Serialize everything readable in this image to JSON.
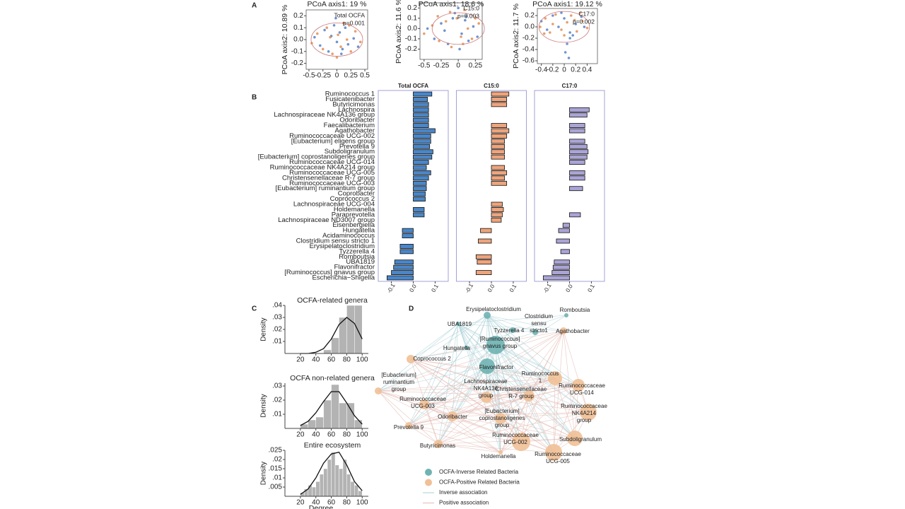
{
  "panel_labels": [
    "A",
    "B",
    "C",
    "D"
  ],
  "chart_data": [
    {
      "type": "scatter",
      "title": "PCoA axis1:  19 %",
      "y_label": "PCoA axis2:  10.89 %",
      "annotation": [
        "Total OCFA",
        "p=0.001"
      ],
      "xlim": [
        -0.55,
        0.55
      ],
      "ylim": [
        -0.25,
        0.25
      ],
      "xticks": [
        -0.5,
        -0.25,
        0,
        0.25,
        0.5
      ],
      "yticks": [
        0.2,
        0.1,
        {
          "value": 0,
          "label": "0.0"
        },
        -0.1,
        -0.2
      ],
      "series": [
        {
          "color": "#4a78c4",
          "x": [
            -0.4,
            -0.3,
            -0.22,
            -0.15,
            -0.1,
            -0.05,
            0,
            0.05,
            0.1,
            0.15,
            0.2,
            0.3,
            0.38,
            -0.02,
            0.08
          ],
          "y": [
            0.02,
            -0.05,
            0.08,
            -0.1,
            0.03,
            0.12,
            -0.02,
            0.06,
            -0.08,
            0.1,
            -0.04,
            0.01,
            -0.06,
            0.18,
            -0.12
          ]
        },
        {
          "color": "#e0874a",
          "x": [
            -0.45,
            -0.35,
            -0.25,
            -0.18,
            -0.08,
            0.02,
            0.07,
            0.12,
            0.18,
            0.25,
            0.33,
            0.42,
            -0.12,
            0,
            0.22
          ],
          "y": [
            -0.03,
            0.05,
            -0.08,
            0.1,
            -0.12,
            0.04,
            -0.06,
            0.14,
            0,
            -0.1,
            0.07,
            -0.02,
            0.02,
            -0.15,
            0.12
          ]
        }
      ]
    },
    {
      "type": "scatter",
      "title": "PCoA axis1:  18.6 %",
      "y_label": "PCoA axis2:  11.6 %",
      "annotation": [
        "C15:0",
        "p=0.003"
      ],
      "xlim": [
        -0.56,
        0.35
      ],
      "ylim": [
        -0.3,
        0.25
      ],
      "xticks": [
        -0.5,
        -0.25,
        0,
        0.25
      ],
      "yticks": [
        0.2,
        0.1,
        {
          "value": 0,
          "label": "0.0"
        },
        -0.1,
        -0.2
      ],
      "series": [
        {
          "color": "#4a78c4",
          "x": [
            -0.45,
            -0.35,
            -0.25,
            -0.15,
            -0.08,
            0,
            0.05,
            0.1,
            0.15,
            0.22,
            -0.05,
            0.02,
            -0.2,
            0.12,
            0.28
          ],
          "y": [
            0,
            -0.1,
            0.05,
            -0.15,
            0.1,
            0.2,
            -0.05,
            0.08,
            -0.12,
            0.02,
            0.15,
            -0.2,
            -0.02,
            0.12,
            -0.08
          ]
        },
        {
          "color": "#e0874a",
          "x": [
            -0.5,
            -0.38,
            -0.28,
            -0.18,
            -0.1,
            -0.02,
            0.04,
            0.09,
            0.14,
            0.2,
            0.3,
            -0.12,
            0.07,
            -0.3,
            0.25
          ],
          "y": [
            -0.05,
            0.03,
            -0.12,
            0.07,
            -0.18,
            0.1,
            -0.08,
            0.18,
            0,
            -0.1,
            0.05,
            0.16,
            -0.15,
            0.12,
            0.1
          ]
        }
      ]
    },
    {
      "type": "scatter",
      "title": "PCoA axis1:  19.12 %",
      "y_label": "PCoA axis2:  11.7 %",
      "annotation": [
        "C17:0",
        "p=0.002"
      ],
      "xlim": [
        -0.47,
        0.58
      ],
      "ylim": [
        -0.65,
        0.325
      ],
      "xticks": [
        -0.4,
        -0.2,
        0,
        0.2,
        0.4
      ],
      "yticks": [
        0.2,
        {
          "value": 0,
          "label": "0.0"
        },
        -0.2,
        -0.4,
        -0.6
      ],
      "series": [
        {
          "color": "#4a78c4",
          "x": [
            -0.4,
            -0.3,
            -0.2,
            -0.1,
            0,
            0.1,
            0.2,
            0.3,
            0.05,
            0.02,
            0.08,
            0.1,
            -0.05,
            0.15,
            0.35
          ],
          "y": [
            0.1,
            -0.05,
            0.2,
            0,
            0.15,
            -0.1,
            0.05,
            0.18,
            -0.3,
            -0.45,
            -0.55,
            -0.2,
            0.25,
            -0.15,
            0
          ]
        },
        {
          "color": "#e0874a",
          "x": [
            -0.42,
            -0.33,
            -0.25,
            -0.15,
            -0.05,
            0.05,
            0.12,
            0.22,
            0.32,
            0.4,
            -0.2,
            0,
            0.18,
            -0.35,
            0.28
          ],
          "y": [
            0,
            0.15,
            -0.1,
            0.22,
            -0.05,
            0.08,
            0.2,
            -0.08,
            0.1,
            -0.02,
            0.05,
            -0.15,
            0.12,
            -0.12,
            0.25
          ]
        }
      ]
    },
    {
      "type": "bar",
      "orientation": "horizontal",
      "categories": [
        "Ruminococcus 1",
        "Fusicatenibacter",
        "Butyricimonas",
        "Lachnospira",
        "Lachnospiraceae NK4A136 group",
        "Odoribacter",
        "Faecalibacterium",
        "Agathobacter",
        "Ruminococcaceae UCG-002",
        "[Eubacterium] eligens group",
        "Prevotella 9",
        "Subdoligranulum",
        "[Eubacterium] coprostanoligenes group",
        "Ruminococcaceae UCG-014",
        "Ruminococcaceae NK4A214 group",
        "Ruminococcaceae UCG-005",
        "Christensenellaceae R-7 group",
        "Ruminococcaceae UCG-003",
        "[Eubacterium] ruminantium group",
        "Coprobacter",
        "Coprococcus 2",
        "Lachnospiraceae UCG-004",
        "Holdemanella",
        "Paraprevotella",
        "Lachnospiraceae ND3007 group",
        "Eisenbergiella",
        "Hungatella",
        "Acidaminococcus",
        "Clostridium sensu stricto 1",
        "Erysipelatoclostridium",
        "Tyzzerella 4",
        "Romboutsia",
        "UBA1819",
        "Flavonifractor",
        "[Ruminococcus] gnavus group",
        "Escherichia−Shigella"
      ],
      "xlim": [
        -0.16,
        0.16
      ],
      "xticks": [
        -0.1,
        {
          "value": 0,
          "label": "0.0"
        },
        0.1
      ],
      "series": [
        {
          "name": "Total OCFA",
          "color": "#4a86c8",
          "values": [
            0.085,
            0.065,
            0.07,
            0.07,
            0.07,
            0.07,
            0.07,
            0.1,
            0.08,
            0.08,
            0.075,
            0.09,
            0.085,
            0.07,
            0.06,
            0.08,
            0.07,
            0.06,
            0.06,
            0.055,
            0.055,
            null,
            0.05,
            0.05,
            null,
            null,
            -0.05,
            -0.05,
            null,
            -0.06,
            -0.06,
            null,
            -0.085,
            -0.09,
            -0.1,
            -0.12
          ]
        },
        {
          "name": "C15:0",
          "color": "#eea47c",
          "values": [
            0.08,
            0.07,
            0.07,
            null,
            null,
            null,
            0.07,
            0.08,
            0.07,
            0.06,
            0.06,
            0.06,
            0.06,
            null,
            0.06,
            0.07,
            0.06,
            0.07,
            null,
            null,
            null,
            0.05,
            0.055,
            0.05,
            0.045,
            null,
            -0.05,
            null,
            -0.06,
            null,
            null,
            -0.07,
            -0.065,
            null,
            -0.07,
            null
          ]
        },
        {
          "name": "C17:0",
          "color": "#aaa4d6",
          "values": [
            null,
            null,
            null,
            0.09,
            0.08,
            null,
            0.07,
            0.07,
            null,
            0.07,
            0.08,
            0.085,
            0.08,
            0.07,
            null,
            0.07,
            0.07,
            null,
            0.06,
            null,
            null,
            null,
            null,
            0.05,
            null,
            -0.03,
            -0.05,
            null,
            -0.06,
            null,
            -0.04,
            null,
            -0.07,
            -0.075,
            -0.08,
            -0.12
          ]
        }
      ]
    },
    {
      "type": "histogram",
      "title": "OCFA-related genera",
      "y_label": "Density",
      "color": "#b3b3b3",
      "bins": [
        50,
        60,
        70,
        80,
        90,
        100
      ],
      "values": [
        0.003,
        0.013,
        0.03,
        0.04,
        0.04
      ],
      "curve": {
        "x": [
          20,
          30,
          40,
          50,
          60,
          70,
          80,
          90,
          100
        ],
        "y": [
          0,
          0,
          0.001,
          0.004,
          0.012,
          0.024,
          0.03,
          0.025,
          0.012
        ]
      },
      "xlim": [
        0,
        108
      ],
      "ylim": [
        0,
        0.04
      ],
      "xticks": [
        20,
        40,
        60,
        80,
        100
      ],
      "yticks": [
        {
          "value": 0.04,
          "label": ".04"
        },
        {
          "value": 0.03,
          "label": ".03"
        },
        {
          "value": 0.02,
          "label": ".02"
        },
        {
          "value": 0.01,
          "label": ".01"
        }
      ]
    },
    {
      "type": "histogram",
      "title": "OCFA non-related genera",
      "y_label": "Density",
      "color": "#b3b3b3",
      "bins": [
        20,
        30,
        40,
        50,
        60,
        70,
        80,
        90,
        100
      ],
      "values": [
        0.003,
        0.006,
        0.008,
        0.02,
        0.031,
        0.018,
        0.018,
        0.006
      ],
      "curve": {
        "x": [
          20,
          30,
          40,
          50,
          60,
          70,
          80,
          90,
          100
        ],
        "y": [
          0.002,
          0.005,
          0.011,
          0.019,
          0.026,
          0.026,
          0.018,
          0.009,
          0.003
        ]
      },
      "xlim": [
        0,
        108
      ],
      "ylim": [
        0,
        0.032
      ],
      "xticks": [
        20,
        40,
        60,
        80,
        100
      ],
      "yticks": [
        {
          "value": 0.03,
          "label": ".03"
        },
        {
          "value": 0.02,
          "label": ".02"
        },
        {
          "value": 0.01,
          "label": ".01"
        }
      ]
    },
    {
      "type": "histogram",
      "title": "Entire ecosystem",
      "y_label": "Density",
      "x_label": "Degree",
      "color": "#b3b3b3",
      "bins": [
        20,
        25,
        30,
        35,
        40,
        45,
        50,
        55,
        60,
        65,
        70,
        75,
        80,
        85,
        90,
        95,
        100
      ],
      "values": [
        0.002,
        0.004,
        0.006,
        0.005,
        0.008,
        0.012,
        0.015,
        0.02,
        0.024,
        0.017,
        0.015,
        0.02,
        0.012,
        0.008,
        0.006,
        0.003
      ],
      "curve": {
        "x": [
          20,
          30,
          40,
          50,
          60,
          70,
          80,
          90,
          100
        ],
        "y": [
          0.001,
          0.004,
          0.01,
          0.018,
          0.023,
          0.024,
          0.017,
          0.008,
          0.003
        ]
      },
      "xlim": [
        0,
        108
      ],
      "ylim": [
        0,
        0.025
      ],
      "xticks": [
        20,
        40,
        60,
        80,
        100
      ],
      "yticks": [
        {
          "value": 0.025,
          "label": ".025"
        },
        {
          "value": 0.02,
          "label": ".02"
        },
        {
          "value": 0.015,
          "label": ".015"
        },
        {
          "value": 0.01,
          "label": ".01"
        },
        {
          "value": 0.005,
          "label": ".005"
        }
      ]
    }
  ],
  "network": {
    "nodes": [
      {
        "label": [
          "Erysipelatoclostridium"
        ],
        "color": "#6fb3b3"
      },
      {
        "label": [
          "Romboutsia"
        ],
        "color": "#6fb3b3"
      },
      {
        "label": [
          "Clostridium",
          "sensu",
          "stricto1"
        ],
        "color": "#6fb3b3"
      },
      {
        "label": [
          "UBA1819"
        ],
        "color": "#6fb3b3"
      },
      {
        "label": [
          "Tyzzerella 4"
        ],
        "color": "#6fb3b3"
      },
      {
        "label": [
          "Agathobacter"
        ],
        "color": "#f0c096"
      },
      {
        "label": [
          "[Ruminococcus]",
          "gnavus group"
        ],
        "color": "#6fb3b3"
      },
      {
        "label": [
          "Hungatella"
        ],
        "color": "#6fb3b3"
      },
      {
        "label": [
          "Coprococcus 2"
        ],
        "color": "#f0c096"
      },
      {
        "label": [
          "Flavonifractor"
        ],
        "color": "#6fb3b3"
      },
      {
        "label": [
          "Ruminococcus",
          "1"
        ],
        "color": "#f0c096"
      },
      {
        "label": [
          "[Eubacterium]",
          "ruminantium",
          "group"
        ],
        "color": "#f0c096"
      },
      {
        "label": [
          "Lachnospiraceae",
          "NK4A136",
          "group"
        ],
        "color": "#f0c096"
      },
      {
        "label": [
          "Christensenellaceae",
          "R-7 group"
        ],
        "color": "#f0c096"
      },
      {
        "label": [
          "Ruminococcaceae",
          "UCG-014"
        ],
        "color": "#f0c096"
      },
      {
        "label": [
          "Ruminococcaceae",
          "UCG-003"
        ],
        "color": "#f0c096"
      },
      {
        "label": [
          "Ruminococcaceae",
          "NK4A214",
          "group"
        ],
        "color": "#f0c096"
      },
      {
        "label": [
          "[Eubacterium]",
          "coprostanoligenes",
          "group"
        ],
        "color": "#f0c096"
      },
      {
        "label": [
          "Odoribacter"
        ],
        "color": "#f0c096"
      },
      {
        "label": [
          "Prevotella 9"
        ],
        "color": "#f0c096"
      },
      {
        "label": [
          "Subdoligranulum"
        ],
        "color": "#f0c096"
      },
      {
        "label": [
          "Ruminococcaceae",
          "UCG-002"
        ],
        "color": "#f0c096"
      },
      {
        "label": [
          "Butyricimonas"
        ],
        "color": "#f0c096"
      },
      {
        "label": [
          "Holdemanella"
        ],
        "color": "#f0c096"
      },
      {
        "label": [
          "Ruminococcaceae",
          "UCG-005"
        ],
        "color": "#f0c096"
      }
    ],
    "legend": [
      {
        "label": "OCFA-Inverse Related Bacteria",
        "color": "#6fb3b3",
        "marker": "circle"
      },
      {
        "label": "OCFA-Positive Related Bacteria",
        "color": "#f0c096",
        "marker": "circle"
      },
      {
        "label": "Inverse association",
        "color": "#a8cfd6",
        "marker": "line"
      },
      {
        "label": "Positive association",
        "color": "#e3b8b0",
        "marker": "line"
      }
    ]
  }
}
